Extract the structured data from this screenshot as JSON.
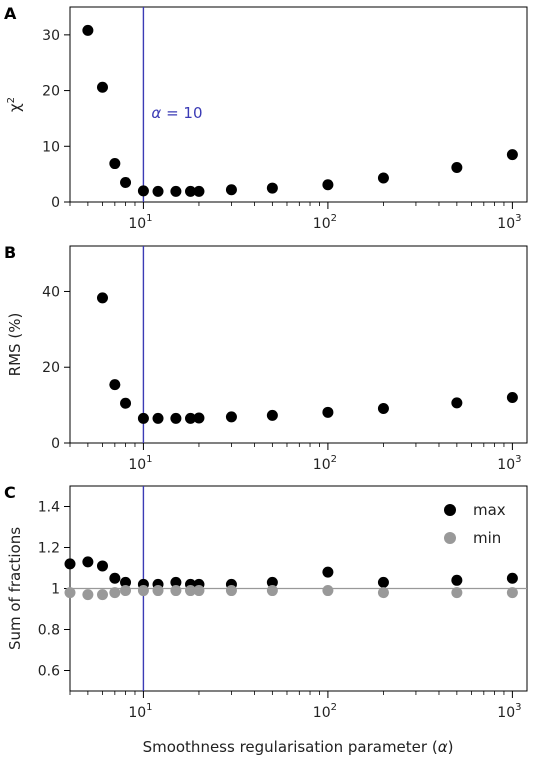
{
  "colors": {
    "black": "#000000",
    "gray": "#999999",
    "vline": "#3b3bb5",
    "refline": "#999999"
  },
  "xlabel": "Smoothness regularisation parameter (α)",
  "chart_data": [
    {
      "type": "scatter",
      "panel": "A",
      "ylabel": "χ²",
      "xscale": "log",
      "xlim": [
        4,
        1200
      ],
      "ylim": [
        0,
        35
      ],
      "yticks": [
        0,
        10,
        20,
        30
      ],
      "xticks": [
        10,
        100,
        1000
      ],
      "vline": 10,
      "annotation": "α = 10",
      "series": [
        {
          "color": "#000000",
          "x": [
            5,
            6,
            7,
            8,
            10,
            12,
            15,
            18,
            20,
            30,
            50,
            100,
            200,
            500,
            1000
          ],
          "y": [
            30.8,
            20.6,
            6.9,
            3.5,
            2.0,
            1.9,
            1.9,
            1.9,
            1.9,
            2.2,
            2.5,
            3.1,
            4.3,
            6.2,
            8.5
          ]
        }
      ]
    },
    {
      "type": "scatter",
      "panel": "B",
      "ylabel": "RMS (%)",
      "xscale": "log",
      "xlim": [
        4,
        1200
      ],
      "ylim": [
        0,
        52
      ],
      "yticks": [
        0,
        20,
        40
      ],
      "xticks": [
        10,
        100,
        1000
      ],
      "vline": 10,
      "series": [
        {
          "color": "#000000",
          "x": [
            6,
            7,
            8,
            10,
            12,
            15,
            18,
            20,
            30,
            50,
            100,
            200,
            500,
            1000
          ],
          "y": [
            38.3,
            15.4,
            10.5,
            6.5,
            6.5,
            6.5,
            6.5,
            6.6,
            6.9,
            7.3,
            8.1,
            9.1,
            10.6,
            12.0
          ]
        }
      ]
    },
    {
      "type": "scatter",
      "panel": "C",
      "ylabel": "Sum of fractions",
      "xscale": "log",
      "xlim": [
        4,
        1200
      ],
      "ylim": [
        0.5,
        1.5
      ],
      "yticks": [
        0.6,
        0.8,
        1.0,
        1.2,
        1.4
      ],
      "xticks": [
        10,
        100,
        1000
      ],
      "vline": 10,
      "hline": 1.0,
      "legend": "upper right",
      "series": [
        {
          "name": "max",
          "color": "#000000",
          "x": [
            4,
            5,
            6,
            7,
            8,
            10,
            12,
            15,
            18,
            20,
            30,
            50,
            100,
            200,
            500,
            1000
          ],
          "y": [
            1.12,
            1.13,
            1.11,
            1.05,
            1.03,
            1.02,
            1.02,
            1.03,
            1.02,
            1.02,
            1.02,
            1.03,
            1.08,
            1.03,
            1.04,
            1.05
          ]
        },
        {
          "name": "min",
          "color": "#999999",
          "x": [
            4,
            5,
            6,
            7,
            8,
            10,
            12,
            15,
            18,
            20,
            30,
            50,
            100,
            200,
            500,
            1000
          ],
          "y": [
            0.98,
            0.97,
            0.97,
            0.98,
            0.99,
            0.99,
            0.99,
            0.99,
            0.99,
            0.99,
            0.99,
            0.99,
            0.99,
            0.98,
            0.98,
            0.98
          ]
        }
      ]
    }
  ]
}
